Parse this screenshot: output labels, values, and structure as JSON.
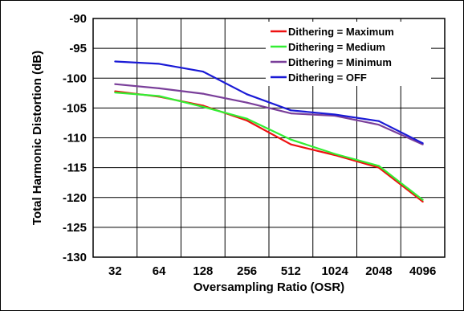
{
  "chart_data": {
    "type": "line",
    "title": "",
    "xlabel": "Oversampling Ratio (OSR)",
    "ylabel": "Total Harmonic Distortion (dB)",
    "categories": [
      "32",
      "64",
      "128",
      "256",
      "512",
      "1024",
      "2048",
      "4096"
    ],
    "ylim": [
      -130,
      -90
    ],
    "yticks": [
      -90,
      -95,
      -100,
      -105,
      -110,
      -115,
      -120,
      -125,
      -130
    ],
    "grid": true,
    "legend_position": "top-right",
    "series": [
      {
        "name": "Dithering = Maximum",
        "color": "#ee1111",
        "values": [
          -102.2,
          -103.1,
          -104.6,
          -107.1,
          -111.1,
          -112.9,
          -115.0,
          -120.7
        ]
      },
      {
        "name": "Dithering = Medium",
        "color": "#33ee33",
        "values": [
          -102.4,
          -103.0,
          -104.8,
          -106.8,
          -110.3,
          -112.7,
          -114.7,
          -120.4
        ]
      },
      {
        "name": "Dithering = Minimum",
        "color": "#7a3f9a",
        "values": [
          -101.0,
          -101.7,
          -102.6,
          -104.1,
          -105.9,
          -106.3,
          -107.8,
          -111.1
        ]
      },
      {
        "name": "Dithering = OFF",
        "color": "#1a1ad6",
        "values": [
          -97.2,
          -97.6,
          -98.9,
          -102.7,
          -105.4,
          -106.1,
          -107.2,
          -110.9
        ]
      }
    ]
  }
}
